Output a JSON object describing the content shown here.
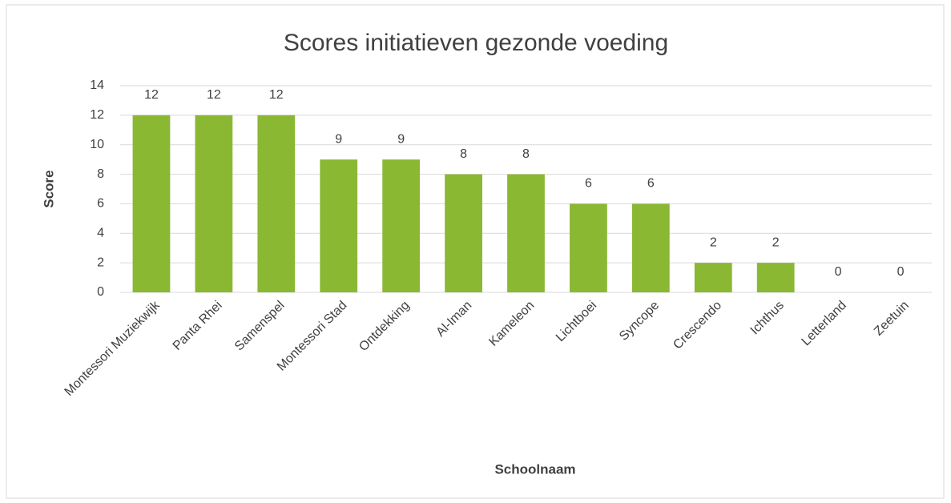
{
  "chart_data": {
    "type": "bar",
    "title": "Scores initiatieven gezonde voeding",
    "xlabel": "Schoolnaam",
    "ylabel": "Score",
    "categories": [
      "Montessori Muziekwijk",
      "Panta Rhei",
      "Samenspel",
      "Montessori Stad",
      "Ontdekking",
      "Al-Iman",
      "Kameleon",
      "Lichtboei",
      "Syncope",
      "Crescendo",
      "Ichthus",
      "Letterland",
      "Zeetuin"
    ],
    "values": [
      12,
      12,
      12,
      9,
      9,
      8,
      8,
      6,
      6,
      2,
      2,
      0,
      0
    ],
    "color": "#8ab833",
    "ylim": [
      0,
      14
    ],
    "yticks": [
      0,
      2,
      4,
      6,
      8,
      10,
      12,
      14
    ],
    "grid": true
  }
}
